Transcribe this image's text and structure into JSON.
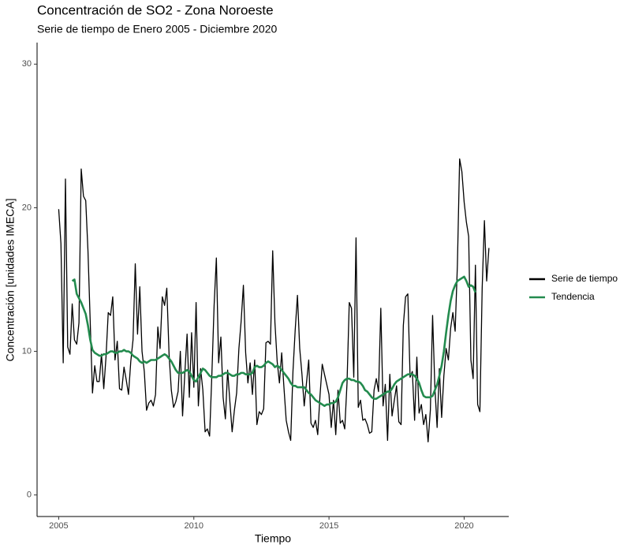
{
  "chart_data": {
    "type": "line",
    "title": "Concentración de SO2 - Zona Noroeste",
    "subtitle": "Serie de tiempo de Enero 2005 - Diciembre 2020",
    "x_label": "Tiempo",
    "y_label": "Concentración [unidades IMECA]",
    "x": [
      2005,
      2005.083,
      2005.167,
      2005.25,
      2005.333,
      2005.417,
      2005.5,
      2005.583,
      2005.667,
      2005.75,
      2005.833,
      2005.917,
      2006,
      2006.083,
      2006.167,
      2006.25,
      2006.333,
      2006.417,
      2006.5,
      2006.583,
      2006.667,
      2006.75,
      2006.833,
      2006.917,
      2007,
      2007.083,
      2007.167,
      2007.25,
      2007.333,
      2007.417,
      2007.5,
      2007.583,
      2007.667,
      2007.75,
      2007.833,
      2007.917,
      2008,
      2008.083,
      2008.167,
      2008.25,
      2008.333,
      2008.417,
      2008.5,
      2008.583,
      2008.667,
      2008.75,
      2008.833,
      2008.917,
      2009,
      2009.083,
      2009.167,
      2009.25,
      2009.333,
      2009.417,
      2009.5,
      2009.583,
      2009.667,
      2009.75,
      2009.833,
      2009.917,
      2010,
      2010.083,
      2010.167,
      2010.25,
      2010.333,
      2010.417,
      2010.5,
      2010.583,
      2010.667,
      2010.75,
      2010.833,
      2010.917,
      2011,
      2011.083,
      2011.167,
      2011.25,
      2011.333,
      2011.417,
      2011.5,
      2011.583,
      2011.667,
      2011.75,
      2011.833,
      2011.917,
      2012,
      2012.083,
      2012.167,
      2012.25,
      2012.333,
      2012.417,
      2012.5,
      2012.583,
      2012.667,
      2012.75,
      2012.833,
      2012.917,
      2013,
      2013.083,
      2013.167,
      2013.25,
      2013.333,
      2013.417,
      2013.5,
      2013.583,
      2013.667,
      2013.75,
      2013.833,
      2013.917,
      2014,
      2014.083,
      2014.167,
      2014.25,
      2014.333,
      2014.417,
      2014.5,
      2014.583,
      2014.667,
      2014.75,
      2014.833,
      2014.917,
      2015,
      2015.083,
      2015.167,
      2015.25,
      2015.333,
      2015.417,
      2015.5,
      2015.583,
      2015.667,
      2015.75,
      2015.833,
      2015.917,
      2016,
      2016.083,
      2016.167,
      2016.25,
      2016.333,
      2016.417,
      2016.5,
      2016.583,
      2016.667,
      2016.75,
      2016.833,
      2016.917,
      2017,
      2017.083,
      2017.167,
      2017.25,
      2017.333,
      2017.417,
      2017.5,
      2017.583,
      2017.667,
      2017.75,
      2017.833,
      2017.917,
      2018,
      2018.083,
      2018.167,
      2018.25,
      2018.333,
      2018.417,
      2018.5,
      2018.583,
      2018.667,
      2018.75,
      2018.833,
      2018.917,
      2019,
      2019.083,
      2019.167,
      2019.25,
      2019.333,
      2019.417,
      2019.5,
      2019.583,
      2019.667,
      2019.75,
      2019.833,
      2019.917,
      2020,
      2020.083,
      2020.167,
      2020.25,
      2020.333,
      2020.417,
      2020.5,
      2020.583,
      2020.667,
      2020.75,
      2020.833,
      2020.917
    ],
    "series": [
      {
        "name": "Serie de tiempo",
        "color": "#000000",
        "width": 1.3,
        "values": [
          19.9,
          17.5,
          9.2,
          22,
          10.3,
          9.8,
          13.3,
          10.8,
          10.5,
          12,
          22.7,
          20.8,
          20.5,
          17,
          12,
          7.1,
          9,
          7.9,
          7.9,
          9.8,
          7.4,
          9.6,
          12.7,
          12.5,
          13.8,
          9.4,
          10.7,
          7.4,
          7.3,
          8.9,
          8,
          7,
          9.3,
          10.8,
          16.1,
          11.2,
          14.5,
          10,
          8.6,
          5.9,
          6.4,
          6.6,
          6.2,
          7,
          11.7,
          10.2,
          13.8,
          13.2,
          14.4,
          9.8,
          7.3,
          6.1,
          6.5,
          7.2,
          10,
          5.5,
          8.5,
          11.2,
          6.8,
          11.3,
          7.5,
          13.4,
          6.2,
          8.8,
          7.3,
          4.4,
          4.6,
          4.1,
          8.4,
          13.2,
          16.5,
          9.2,
          11,
          6.8,
          5.3,
          8.7,
          6.5,
          4.4,
          5.9,
          7.1,
          10.2,
          12.1,
          14.6,
          9.9,
          7.8,
          9.2,
          7,
          9.4,
          4.9,
          5.8,
          5.6,
          6,
          10.6,
          10.7,
          10.5,
          17,
          12,
          9.3,
          7.8,
          9.9,
          7.5,
          5.2,
          4.4,
          3.8,
          8.6,
          11.5,
          13.9,
          10.2,
          8.4,
          6.2,
          7.8,
          9.4,
          5,
          4.7,
          5.2,
          4.2,
          6.9,
          9.1,
          8.4,
          7.7,
          7,
          4.7,
          6.6,
          4.2,
          7.3,
          5,
          5.2,
          4.6,
          7.8,
          13.4,
          13,
          8.2,
          17.9,
          6.1,
          6.6,
          5.2,
          5.3,
          4.9,
          4.3,
          4.4,
          7.3,
          8.1,
          7.2,
          13,
          6.2,
          7.7,
          3.8,
          8.4,
          5.5,
          6.6,
          7.6,
          5.1,
          4.9,
          11.8,
          13.8,
          14,
          8.2,
          8.6,
          5.2,
          9.6,
          5.7,
          6.3,
          4.9,
          5.6,
          3.7,
          5.9,
          12.5,
          7.5,
          4.7,
          8.8,
          5.4,
          8.3,
          10.2,
          9.4,
          11.6,
          12.7,
          11.4,
          16,
          23.4,
          22.5,
          20.4,
          19,
          18,
          9.4,
          8.1,
          16,
          6.3,
          5.8,
          14.4,
          19.1,
          14.9,
          17.2
        ]
      },
      {
        "name": "Tendencia",
        "color": "#238b4e",
        "width": 2.6,
        "values": [
          null,
          null,
          null,
          null,
          null,
          null,
          14.9,
          15,
          14,
          13.7,
          13.4,
          13,
          12.6,
          11.8,
          10.8,
          10.1,
          9.9,
          9.8,
          9.7,
          9.7,
          9.8,
          9.8,
          9.9,
          10,
          10,
          9.9,
          9.9,
          10,
          10,
          10.1,
          10,
          10,
          9.9,
          9.7,
          9.6,
          9.5,
          9.3,
          9.2,
          9.3,
          9.2,
          9.3,
          9.4,
          9.4,
          9.4,
          9.5,
          9.6,
          9.7,
          9.8,
          9.7,
          9.5,
          9.3,
          9,
          8.7,
          8.5,
          8.5,
          8.5,
          8.6,
          8.7,
          8.6,
          8.3,
          8,
          7.9,
          8.2,
          8.5,
          8.8,
          8.7,
          8.5,
          8.3,
          8.2,
          8.2,
          8.2,
          8.3,
          8.3,
          8.4,
          8.5,
          8.5,
          8.4,
          8.3,
          8.3,
          8.4,
          8.4,
          8.5,
          8.5,
          8.4,
          8.4,
          8.4,
          8.5,
          8.9,
          9,
          8.9,
          8.9,
          9,
          9.2,
          9.3,
          9.2,
          9.1,
          8.9,
          9,
          8.9,
          8.7,
          8.5,
          8.3,
          8.1,
          7.8,
          7.6,
          7.6,
          7.5,
          7.5,
          7.5,
          7.5,
          7.3,
          7.1,
          7,
          6.8,
          6.6,
          6.5,
          6.4,
          6.3,
          6.2,
          6.3,
          6.3,
          6.4,
          6.4,
          6.5,
          6.8,
          7.3,
          7.8,
          8,
          8.1,
          8.1,
          8,
          8,
          7.9,
          7.9,
          7.8,
          7.6,
          7.3,
          7.2,
          7,
          6.8,
          6.7,
          6.7,
          6.8,
          6.9,
          7,
          7.1,
          7.2,
          7.2,
          7.4,
          7.7,
          7.9,
          8,
          8.1,
          8.2,
          8.3,
          8.4,
          8.4,
          8.4,
          8.3,
          8.1,
          7.8,
          7.3,
          6.9,
          6.8,
          6.8,
          6.8,
          6.9,
          7.3,
          7.7,
          8.3,
          9,
          10,
          11.3,
          12.5,
          13.5,
          14.2,
          14.6,
          14.9,
          15,
          15.1,
          15.2,
          14.9,
          14.5,
          14.6,
          14.5,
          14.1,
          null,
          null,
          null,
          null,
          null,
          null
        ]
      }
    ],
    "xlim": [
      2004.2,
      2021.65
    ],
    "ylim": [
      -1.5,
      31.5
    ],
    "xticks": [
      2005,
      2010,
      2015,
      2020
    ],
    "yticks": [
      0,
      10,
      20,
      30
    ],
    "grid": false,
    "legend": "right"
  }
}
